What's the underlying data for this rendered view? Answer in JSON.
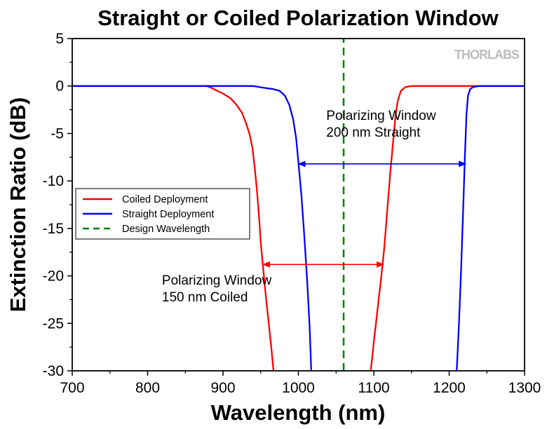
{
  "chart_data": {
    "type": "line",
    "title": "Straight or Coiled Polarization Window",
    "xlabel": "Wavelength (nm)",
    "ylabel": "Extinction Ratio (dB)",
    "xlim": [
      700,
      1300
    ],
    "ylim": [
      -30,
      5
    ],
    "xticks": [
      700,
      800,
      900,
      1000,
      1100,
      1200,
      1300
    ],
    "yticks": [
      5,
      0,
      -5,
      -10,
      -15,
      -20,
      -25,
      -30
    ],
    "grid": false,
    "legend_position": "middle-left",
    "logo": "THORLABS",
    "series": [
      {
        "name": "Coiled Deployment",
        "color": "#ff0000",
        "style": "solid",
        "points": [
          [
            700,
            0
          ],
          [
            878,
            0
          ],
          [
            885,
            -0.2
          ],
          [
            892,
            -0.5
          ],
          [
            900,
            -0.8
          ],
          [
            910,
            -1.3
          ],
          [
            918,
            -2.0
          ],
          [
            925,
            -2.8
          ],
          [
            930,
            -3.8
          ],
          [
            935,
            -5.0
          ],
          [
            939,
            -6.5
          ],
          [
            942,
            -8.5
          ],
          [
            945,
            -11.0
          ],
          [
            948,
            -14.0
          ],
          [
            950,
            -16.5
          ],
          [
            953,
            -19.0
          ],
          [
            956,
            -21.5
          ],
          [
            960,
            -24.5
          ],
          [
            964,
            -27.5
          ],
          [
            967,
            -30.0
          ],
          null,
          [
            1096,
            -30.0
          ],
          [
            1100,
            -27.0
          ],
          [
            1105,
            -23.5
          ],
          [
            1110,
            -20.0
          ],
          [
            1114,
            -17.0
          ],
          [
            1118,
            -13.0
          ],
          [
            1122,
            -9.0
          ],
          [
            1126,
            -5.5
          ],
          [
            1129,
            -3.0
          ],
          [
            1132,
            -1.5
          ],
          [
            1136,
            -0.5
          ],
          [
            1142,
            -0.1
          ],
          [
            1150,
            0
          ],
          [
            1300,
            0
          ]
        ]
      },
      {
        "name": "Straight Deployment",
        "color": "#0000ff",
        "style": "solid",
        "points": [
          [
            700,
            0
          ],
          [
            930,
            0
          ],
          [
            940,
            0
          ],
          [
            948,
            -0.1
          ],
          [
            955,
            -0.2
          ],
          [
            965,
            -0.3
          ],
          [
            975,
            -0.5
          ],
          [
            982,
            -1.0
          ],
          [
            988,
            -2.0
          ],
          [
            993,
            -3.5
          ],
          [
            997,
            -5.5
          ],
          [
            1000,
            -8.0
          ],
          [
            1004,
            -11.5
          ],
          [
            1008,
            -16.0
          ],
          [
            1012,
            -21.0
          ],
          [
            1015,
            -25.5
          ],
          [
            1017,
            -30.0
          ],
          null,
          [
            1210,
            -30.0
          ],
          [
            1213,
            -25.0
          ],
          [
            1216,
            -19.0
          ],
          [
            1219,
            -12.0
          ],
          [
            1221,
            -7.0
          ],
          [
            1223,
            -3.0
          ],
          [
            1225,
            -1.0
          ],
          [
            1228,
            -0.3
          ],
          [
            1232,
            -0.1
          ],
          [
            1240,
            0
          ],
          [
            1300,
            0
          ]
        ]
      },
      {
        "name": "Design Wavelength",
        "color": "#008000",
        "style": "dashed",
        "points": [
          [
            1060,
            -30
          ],
          [
            1060,
            5
          ]
        ]
      }
    ],
    "annotations": [
      {
        "text_lines": [
          "Polarizing Window",
          "200 nm Straight"
        ],
        "text_anchor": [
          1037,
          -3.55
        ],
        "arrow_from": [
          1000,
          -8.2
        ],
        "arrow_to": [
          1222,
          -8.2
        ],
        "color": "#0000ff"
      },
      {
        "text_lines": [
          "Polarizing Window",
          "150 nm Coiled"
        ],
        "text_anchor": [
          819,
          -20.9
        ],
        "arrow_from": [
          953,
          -18.8
        ],
        "arrow_to": [
          1113,
          -18.8
        ],
        "color": "#ff0000"
      }
    ]
  }
}
